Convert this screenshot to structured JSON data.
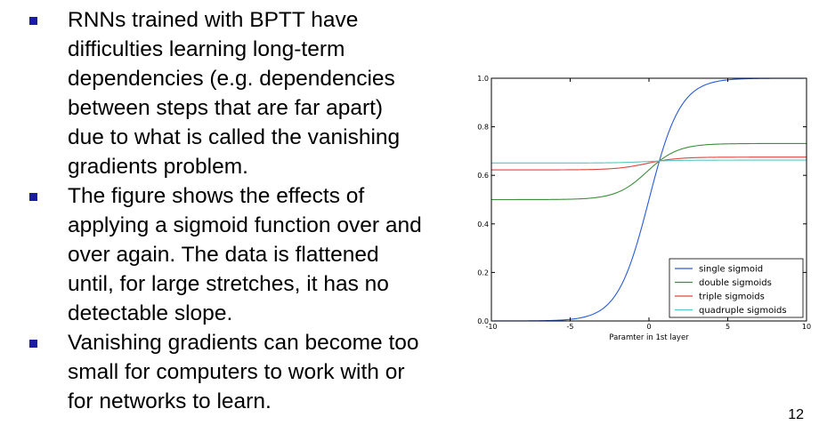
{
  "bullets": [
    "RNNs trained with BPTT have difficulties learning long-term dependencies (e.g. dependencies between steps that are far apart) due to what is called the vanishing gradients problem.",
    "The figure shows the effects of applying a sigmoid function over and over again. The data is flattened until, for large stretches, it has no detectable slope.",
    "Vanishing gradients can become too small for computers to work with or for networks to learn."
  ],
  "bullet_lines": [
    [
      "RNNs trained with BPTT have",
      "difficulties learning long-term",
      "dependencies (e.g. dependencies",
      "between steps that are far apart)",
      "due to what is called the vanishing",
      "gradients problem."
    ],
    [
      "The figure shows the effects of",
      "applying a sigmoid function over and",
      "over again. The data is flattened",
      "until, for large stretches, it has no",
      "detectable slope."
    ],
    [
      "Vanishing gradients can become too",
      "small for computers to work with or",
      "for networks to learn."
    ]
  ],
  "page_number": "12",
  "colors": {
    "bullet_marker": "#1c1ca3"
  },
  "chart_data": {
    "type": "line",
    "title": "",
    "xlabel": "Paramter in 1st layer",
    "ylabel": "",
    "xlim": [
      -10,
      10
    ],
    "ylim": [
      0.0,
      1.0
    ],
    "xticks": [
      "-10",
      "-5",
      "0",
      "5",
      "10"
    ],
    "yticks": [
      "0.0",
      "0.2",
      "0.4",
      "0.6",
      "0.8",
      "1.0"
    ],
    "grid": false,
    "legend_position": "bottom-right",
    "x": [
      -10,
      -9,
      -8,
      -7,
      -6,
      -5,
      -4,
      -3,
      -2,
      -1,
      0,
      1,
      2,
      3,
      4,
      5,
      6,
      7,
      8,
      9,
      10
    ],
    "series": [
      {
        "name": "single sigmoid",
        "color": "#2a5bd7",
        "values": [
          0.0,
          0.0,
          0.0,
          0.001,
          0.002,
          0.007,
          0.018,
          0.047,
          0.12,
          0.27,
          0.5,
          0.73,
          0.88,
          0.953,
          0.982,
          0.993,
          0.998,
          0.999,
          1.0,
          1.0,
          1.0
        ]
      },
      {
        "name": "double sigmoids",
        "color": "#3e8e3e",
        "values": [
          0.5,
          0.5,
          0.5,
          0.5,
          0.501,
          0.502,
          0.505,
          0.512,
          0.53,
          0.567,
          0.622,
          0.675,
          0.707,
          0.722,
          0.728,
          0.73,
          0.731,
          0.731,
          0.731,
          0.731,
          0.731
        ]
      },
      {
        "name": "triple sigmoids",
        "color": "#e0443e",
        "values": [
          0.622,
          0.622,
          0.622,
          0.622,
          0.622,
          0.623,
          0.624,
          0.626,
          0.63,
          0.638,
          0.651,
          0.663,
          0.67,
          0.673,
          0.674,
          0.675,
          0.675,
          0.675,
          0.675,
          0.675,
          0.675
        ]
      },
      {
        "name": "quadruple sigmoids",
        "color": "#55c8c0",
        "values": [
          0.651,
          0.651,
          0.651,
          0.651,
          0.651,
          0.651,
          0.652,
          0.652,
          0.653,
          0.655,
          0.657,
          0.66,
          0.661,
          0.662,
          0.663,
          0.663,
          0.663,
          0.663,
          0.663,
          0.663,
          0.663
        ]
      }
    ]
  }
}
